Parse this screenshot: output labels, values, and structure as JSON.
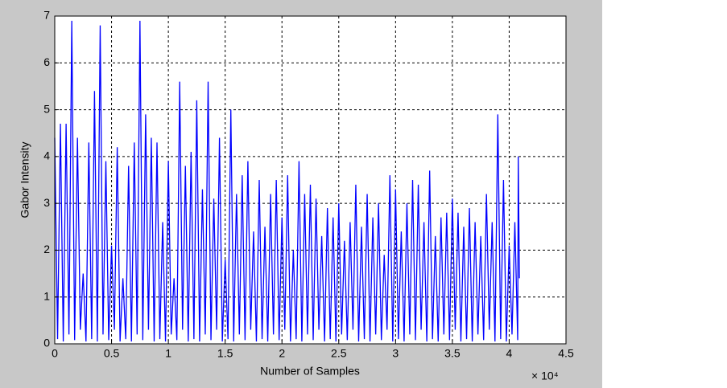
{
  "chart_data": {
    "type": "line",
    "x_label": "Number of Samples",
    "y_label": "Gabor Intensity",
    "x_multiplier": "× 10⁴",
    "x": [
      0,
      0.025,
      0.05,
      0.075,
      0.1,
      0.125,
      0.15,
      0.175,
      0.2,
      0.225,
      0.25,
      0.275,
      0.3,
      0.325,
      0.35,
      0.375,
      0.4,
      0.425,
      0.45,
      0.475,
      0.5,
      0.525,
      0.55,
      0.575,
      0.6,
      0.625,
      0.65,
      0.675,
      0.7,
      0.725,
      0.75,
      0.775,
      0.8,
      0.825,
      0.85,
      0.875,
      0.9,
      0.925,
      0.95,
      0.975,
      1,
      1.025,
      1.05,
      1.075,
      1.1,
      1.125,
      1.15,
      1.175,
      1.2,
      1.225,
      1.25,
      1.275,
      1.3,
      1.325,
      1.35,
      1.375,
      1.4,
      1.425,
      1.45,
      1.475,
      1.5,
      1.525,
      1.55,
      1.575,
      1.6,
      1.625,
      1.65,
      1.675,
      1.7,
      1.725,
      1.75,
      1.775,
      1.8,
      1.825,
      1.85,
      1.875,
      1.9,
      1.925,
      1.95,
      1.975,
      2,
      2.025,
      2.05,
      2.075,
      2.1,
      2.125,
      2.15,
      2.175,
      2.2,
      2.225,
      2.25,
      2.275,
      2.3,
      2.325,
      2.35,
      2.375,
      2.4,
      2.425,
      2.45,
      2.475,
      2.5,
      2.525,
      2.55,
      2.575,
      2.6,
      2.625,
      2.65,
      2.675,
      2.7,
      2.725,
      2.75,
      2.775,
      2.8,
      2.825,
      2.85,
      2.875,
      2.9,
      2.925,
      2.95,
      2.975,
      3,
      3.025,
      3.05,
      3.075,
      3.1,
      3.125,
      3.15,
      3.175,
      3.2,
      3.225,
      3.25,
      3.275,
      3.3,
      3.325,
      3.35,
      3.375,
      3.4,
      3.425,
      3.45,
      3.475,
      3.5,
      3.525,
      3.55,
      3.575,
      3.6,
      3.625,
      3.65,
      3.675,
      3.7,
      3.725,
      3.75,
      3.775,
      3.8,
      3.825,
      3.85,
      3.875,
      3.9,
      3.925,
      3.95,
      3.975,
      4,
      4.025,
      4.05,
      4.075,
      4.08,
      4.09
    ],
    "series": [
      {
        "color": "#0000ff",
        "values": [
          4.4,
          0.1,
          4.7,
          0.05,
          4.7,
          0.2,
          6.9,
          0.08,
          4.4,
          0.3,
          1.5,
          0.05,
          4.3,
          0.1,
          5.4,
          0.05,
          6.8,
          0.2,
          3.9,
          0.08,
          2.1,
          0.3,
          4.2,
          0.05,
          1.4,
          0.1,
          3.8,
          0.05,
          4.3,
          0.2,
          6.9,
          0.08,
          4.9,
          0.3,
          4.4,
          0.05,
          4.3,
          0.1,
          2.6,
          0.05,
          3.9,
          0.2,
          1.4,
          0.08,
          5.6,
          0.3,
          3.8,
          0.05,
          4.1,
          0.1,
          5.2,
          0.05,
          3.3,
          0.2,
          5.6,
          0.08,
          3.1,
          0.3,
          4.4,
          0.05,
          1.8,
          0.1,
          5.0,
          0.05,
          3.2,
          0.2,
          3.6,
          0.08,
          3.9,
          0.3,
          2.4,
          0.05,
          3.5,
          0.1,
          2.5,
          0.05,
          3.2,
          0.2,
          3.5,
          0.08,
          2.7,
          0.3,
          3.6,
          0.05,
          2.0,
          0.1,
          3.9,
          0.05,
          3.2,
          0.2,
          3.4,
          0.08,
          3.1,
          0.3,
          2.3,
          0.05,
          2.9,
          0.1,
          2.7,
          0.05,
          3.0,
          0.2,
          2.2,
          0.08,
          2.6,
          0.3,
          3.4,
          0.05,
          2.5,
          0.1,
          3.2,
          0.05,
          2.7,
          0.2,
          3.0,
          0.08,
          1.9,
          0.3,
          3.6,
          0.05,
          3.3,
          0.1,
          2.4,
          0.05,
          3.0,
          0.2,
          3.5,
          0.08,
          3.4,
          0.3,
          2.6,
          0.05,
          3.7,
          0.1,
          2.3,
          0.05,
          2.7,
          0.2,
          2.8,
          0.08,
          3.1,
          0.3,
          2.8,
          0.05,
          2.5,
          0.1,
          2.9,
          0.05,
          2.6,
          0.2,
          2.3,
          0.08,
          3.2,
          0.3,
          2.6,
          0.05,
          4.9,
          0.1,
          3.5,
          0.05,
          2.1,
          0.2,
          2.6,
          0.08,
          4.0,
          1.4
        ]
      }
    ],
    "xlim": [
      0,
      4.5
    ],
    "xticks": [
      0,
      0.5,
      1,
      1.5,
      2,
      2.5,
      3,
      3.5,
      4,
      4.5
    ],
    "ylim": [
      0,
      7
    ],
    "yticks": [
      0,
      1,
      2,
      3,
      4,
      5,
      6,
      7
    ],
    "grid": true
  }
}
